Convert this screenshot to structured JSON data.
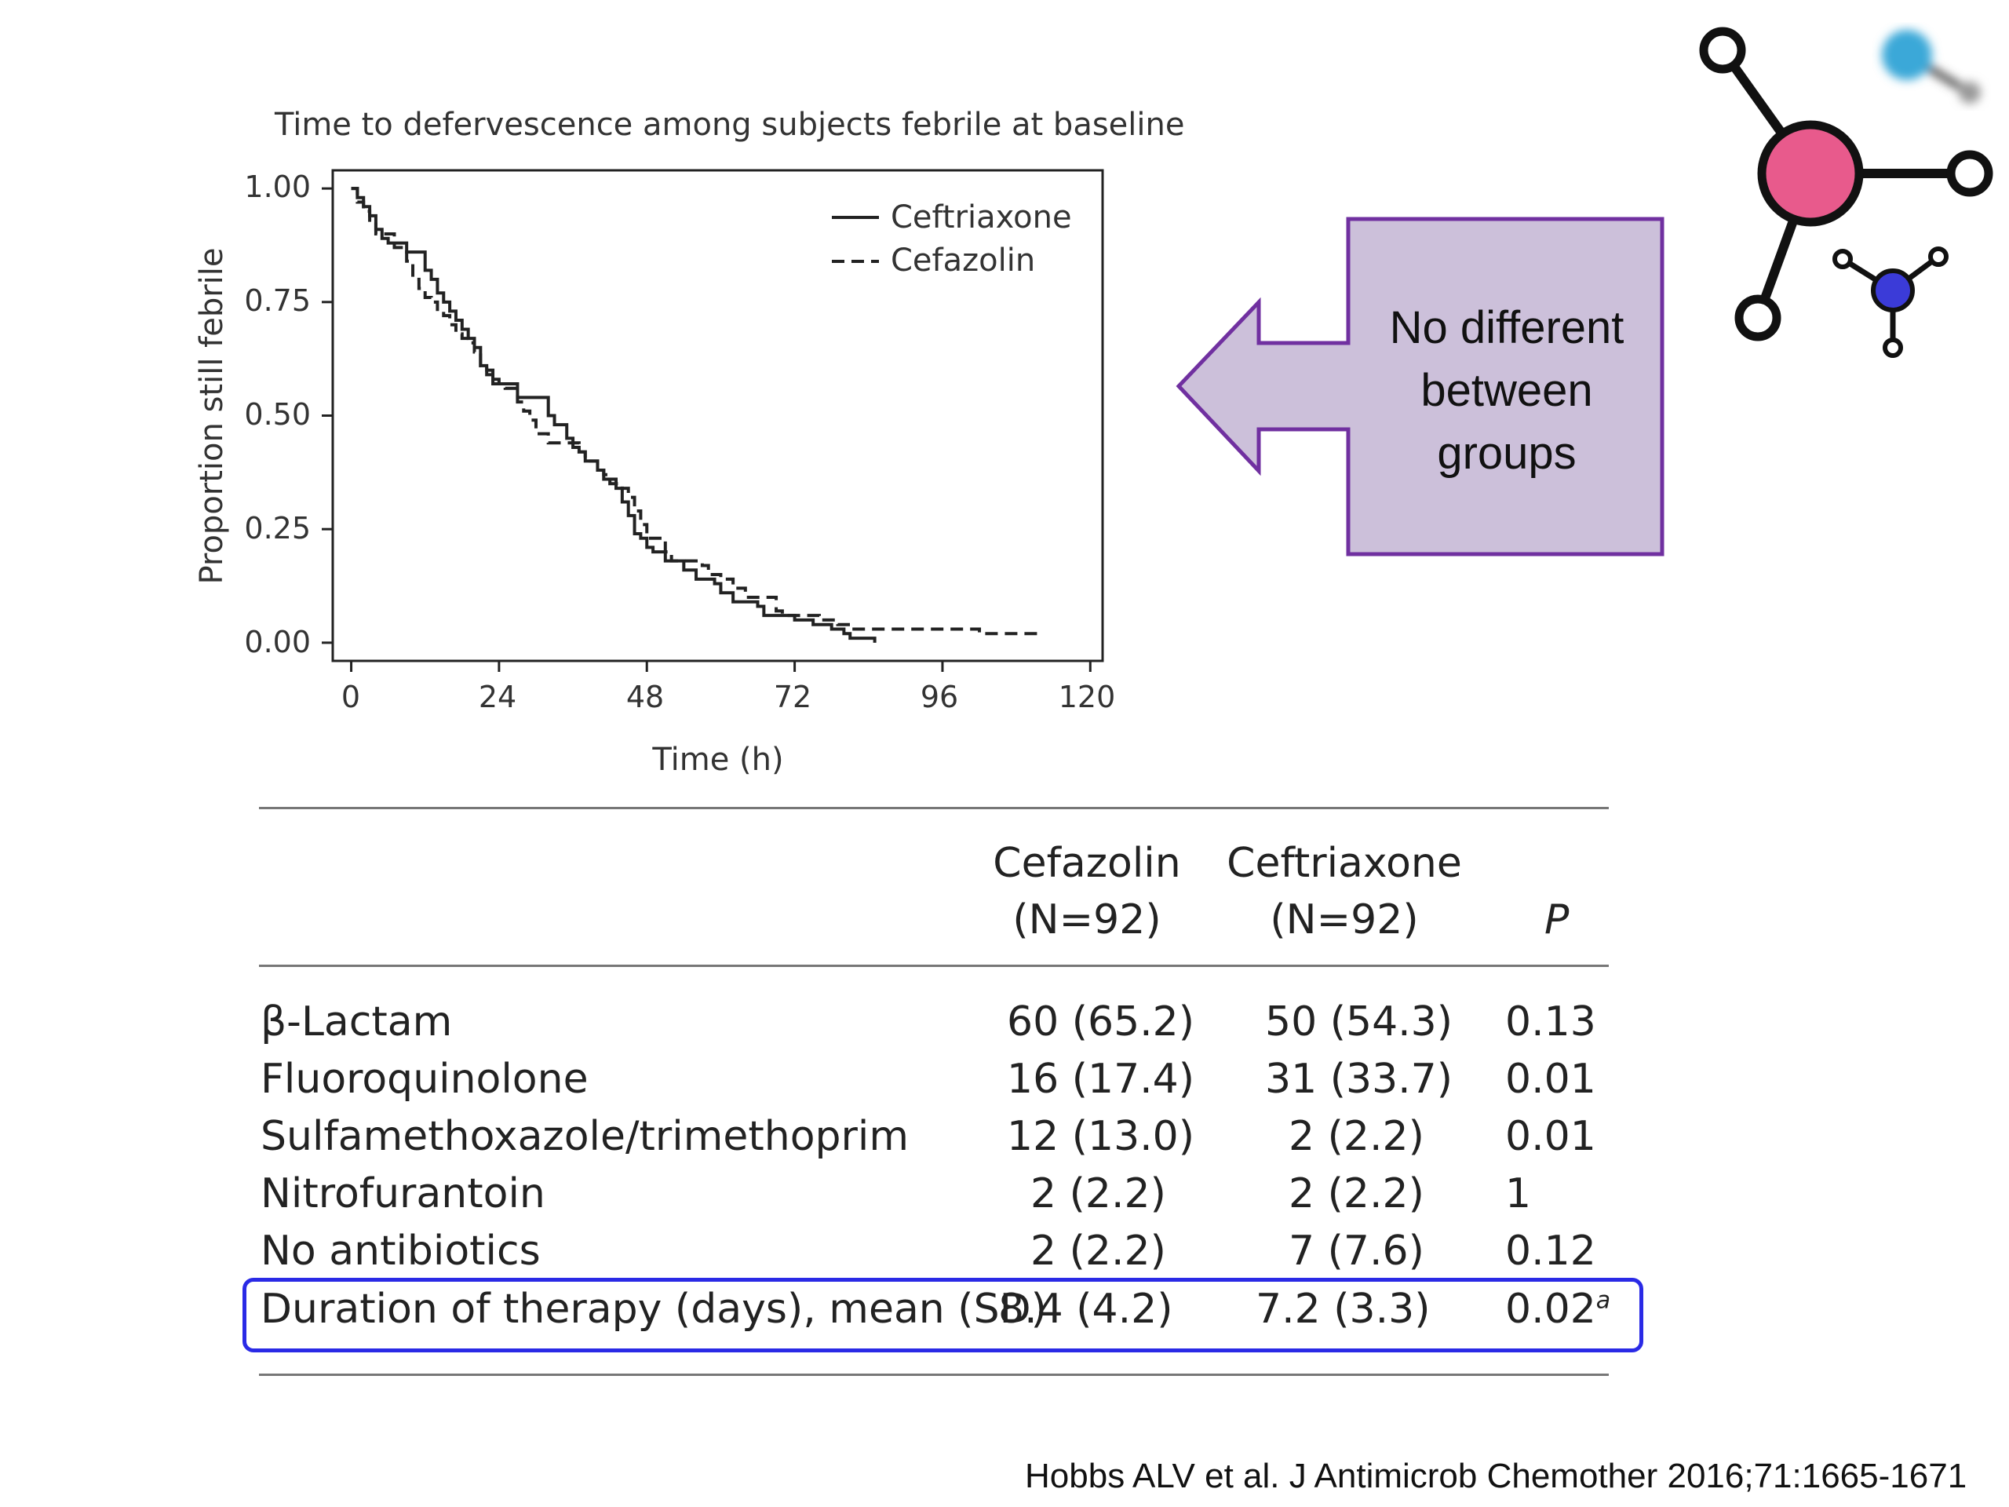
{
  "chart_data": {
    "type": "line",
    "title": "Time to defervescence among subjects febrile at baseline",
    "xlabel": "Time (h)",
    "ylabel": "Proportion still febrile",
    "xlim": [
      -3,
      122
    ],
    "ylim": [
      -0.04,
      1.04
    ],
    "xticks": [
      0,
      24,
      48,
      72,
      96,
      120
    ],
    "xtick_labels": [
      "0",
      "24",
      "48",
      "72",
      "96",
      "120"
    ],
    "yticks": [
      0,
      0.25,
      0.5,
      0.75,
      1.0
    ],
    "ytick_labels": [
      "0.00",
      "0.25",
      "0.50",
      "0.75",
      "1.00"
    ],
    "legend_position": "top-right",
    "series": [
      {
        "name": "Ceftriaxone",
        "style": "solid",
        "x": [
          0,
          1,
          2,
          3,
          4,
          5,
          6,
          9,
          12,
          13,
          14,
          15,
          16,
          17,
          18,
          19,
          20,
          21,
          22,
          23,
          24,
          26,
          27,
          29,
          32,
          33,
          35,
          36,
          37,
          38,
          40,
          41,
          42,
          43,
          44,
          45,
          46,
          47,
          48,
          49,
          51,
          52,
          54,
          56,
          59,
          60,
          62,
          63,
          66,
          67,
          72,
          75,
          77,
          78,
          80,
          81,
          85
        ],
        "y": [
          1.0,
          0.98,
          0.96,
          0.94,
          0.91,
          0.89,
          0.88,
          0.86,
          0.82,
          0.8,
          0.77,
          0.75,
          0.73,
          0.71,
          0.69,
          0.67,
          0.65,
          0.61,
          0.6,
          0.58,
          0.57,
          0.57,
          0.54,
          0.54,
          0.5,
          0.48,
          0.45,
          0.43,
          0.42,
          0.4,
          0.38,
          0.36,
          0.35,
          0.34,
          0.31,
          0.28,
          0.24,
          0.23,
          0.21,
          0.2,
          0.18,
          0.18,
          0.16,
          0.14,
          0.13,
          0.11,
          0.09,
          0.09,
          0.08,
          0.06,
          0.05,
          0.04,
          0.04,
          0.03,
          0.02,
          0.01,
          0.0
        ]
      },
      {
        "name": "Cefazolin",
        "style": "dashed",
        "x": [
          0,
          1,
          2,
          3,
          4,
          7,
          9,
          10,
          11,
          12,
          13,
          14,
          15,
          16,
          17,
          18,
          19,
          20,
          21,
          22,
          23,
          24,
          25,
          27,
          28,
          29,
          30,
          32,
          33,
          34,
          35,
          36,
          37,
          38,
          40,
          41,
          42,
          43,
          44,
          45,
          46,
          47,
          48,
          51,
          52,
          57,
          58,
          60,
          62,
          64,
          69,
          70,
          76,
          79,
          81,
          83,
          102,
          106,
          112
        ],
        "y": [
          1.0,
          0.97,
          0.95,
          0.93,
          0.9,
          0.87,
          0.84,
          0.8,
          0.78,
          0.76,
          0.75,
          0.73,
          0.72,
          0.7,
          0.68,
          0.67,
          0.66,
          0.64,
          0.61,
          0.59,
          0.57,
          0.57,
          0.56,
          0.53,
          0.51,
          0.49,
          0.46,
          0.44,
          0.44,
          0.44,
          0.44,
          0.44,
          0.42,
          0.4,
          0.38,
          0.37,
          0.36,
          0.35,
          0.34,
          0.32,
          0.29,
          0.26,
          0.23,
          0.2,
          0.18,
          0.17,
          0.15,
          0.14,
          0.12,
          0.1,
          0.07,
          0.06,
          0.05,
          0.04,
          0.03,
          0.03,
          0.02,
          0.02,
          0.02
        ]
      }
    ]
  },
  "callout": {
    "text_lines": [
      "No different",
      "between",
      "groups"
    ]
  },
  "table": {
    "col_headers": {
      "cefazolin": [
        "Cefazolin",
        "(N=92)"
      ],
      "ceftriaxone": [
        "Ceftriaxone",
        "(N=92)"
      ],
      "p": "P"
    },
    "rows": [
      {
        "label": "β-Lactam",
        "cefazolin": "60 (65.2)",
        "ceftriaxone": "50 (54.3)",
        "p": "0.13"
      },
      {
        "label": "Fluoroquinolone",
        "cefazolin": "16 (17.4)",
        "ceftriaxone": "31 (33.7)",
        "p": "0.01"
      },
      {
        "label": "Sulfamethoxazole/trimethoprim",
        "cefazolin": "12 (13.0)",
        "ceftriaxone": "2 (2.2)",
        "p": "0.01"
      },
      {
        "label": "Nitrofurantoin",
        "cefazolin": "2 (2.2)",
        "ceftriaxone": "2 (2.2)",
        "p": "1"
      },
      {
        "label": "No antibiotics",
        "cefazolin": "2 (2.2)",
        "ceftriaxone": "7 (7.6)",
        "p": "0.12"
      }
    ],
    "highlight_row": {
      "label": "Duration of therapy (days), mean (SD)",
      "cefazolin": "8.4 (4.2)",
      "ceftriaxone": "7.2 (3.3)",
      "p": "0.02",
      "p_superscript": "a"
    }
  },
  "citation": "Hobbs ALV et al. J Antimicrob Chemother 2016;71:1665-1671",
  "colors": {
    "callout_fill": "#ccc0da",
    "callout_border": "#7030a0",
    "highlight_border": "#2a2ae6",
    "logo_pink": "#e85a8c",
    "logo_cyan": "#3aa8d8",
    "logo_blue": "#3b3bd8"
  }
}
